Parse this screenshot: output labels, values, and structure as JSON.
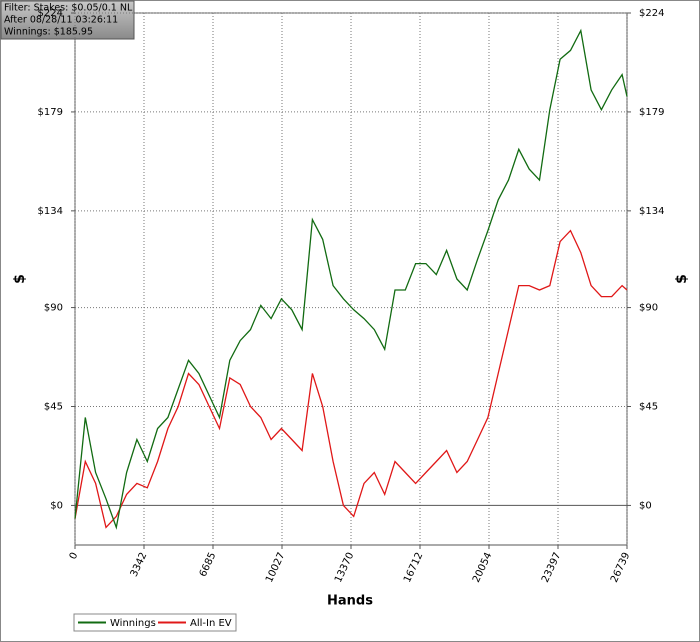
{
  "chart_data": {
    "type": "line",
    "annotations": [
      "Filter: Stakes: $0.05/0.1 NL",
      "After 08/28/11 03:26:11",
      "Winnings: $185.95"
    ],
    "xlabel": "Hands",
    "ylabel": "$",
    "y2label": "$",
    "x": [
      0,
      500,
      1000,
      1500,
      2000,
      2500,
      3000,
      3500,
      4000,
      4500,
      5000,
      5500,
      6000,
      6500,
      7000,
      7500,
      8000,
      8500,
      9000,
      9500,
      10000,
      10500,
      11000,
      11500,
      12000,
      12500,
      13000,
      13500,
      14000,
      14500,
      15000,
      15500,
      16000,
      16500,
      17000,
      17500,
      18000,
      18500,
      19000,
      19500,
      20000,
      20500,
      21000,
      21500,
      22000,
      22500,
      23000,
      23500,
      24000,
      24500,
      25000,
      25500,
      26000,
      26500,
      26739
    ],
    "series": [
      {
        "name": "Winnings",
        "color": "#126b12",
        "values": [
          -6,
          40,
          15,
          3,
          -10,
          15,
          30,
          20,
          35,
          40,
          53,
          66,
          60,
          50,
          40,
          66,
          75,
          80,
          91,
          85,
          94,
          89,
          80,
          130,
          121,
          100,
          94,
          89,
          85,
          80,
          71,
          98,
          98,
          110,
          110,
          105,
          116,
          103,
          98,
          112,
          125,
          139,
          148,
          162,
          153,
          148,
          180,
          203,
          207,
          216,
          189,
          180,
          189,
          196,
          186
        ]
      },
      {
        "name": "All-In EV",
        "color": "#e01818",
        "values": [
          -6,
          20,
          10,
          -10,
          -5,
          5,
          10,
          8,
          20,
          35,
          45,
          60,
          55,
          45,
          35,
          58,
          55,
          45,
          40,
          30,
          35,
          30,
          25,
          60,
          45,
          20,
          0,
          -5,
          10,
          15,
          5,
          20,
          15,
          10,
          15,
          20,
          25,
          15,
          20,
          30,
          40,
          60,
          80,
          100,
          100,
          98,
          100,
          120,
          125,
          115,
          100,
          95,
          95,
          100,
          98
        ]
      }
    ],
    "xlim": [
      0,
      26739
    ],
    "xticks": [
      0,
      3342,
      6685,
      10027,
      13370,
      16712,
      20054,
      23397,
      26739
    ],
    "ylim": [
      -18,
      224
    ],
    "yticks": [
      {
        "value": 0,
        "label": "$0"
      },
      {
        "value": 45,
        "label": "$45"
      },
      {
        "value": 90,
        "label": "$90"
      },
      {
        "value": 134,
        "label": "$134"
      },
      {
        "value": 179,
        "label": "$179"
      },
      {
        "value": 224,
        "label": "$224"
      }
    ],
    "y2lim": [
      -18,
      224
    ],
    "y2ticks": [
      {
        "value": 0,
        "label": "$0"
      },
      {
        "value": 45,
        "label": "$45"
      },
      {
        "value": 90,
        "label": "$90"
      },
      {
        "value": 134,
        "label": "$134"
      },
      {
        "value": 179,
        "label": "$179"
      },
      {
        "value": 224,
        "label": "$224"
      }
    ],
    "grid": true
  }
}
